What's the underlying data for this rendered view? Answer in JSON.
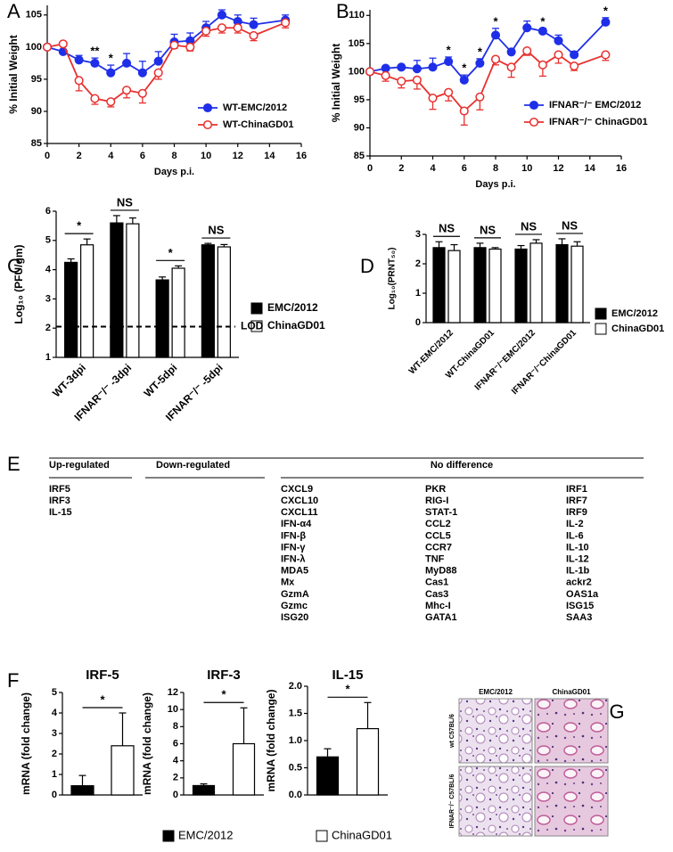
{
  "chart_data": [
    {
      "type": "line",
      "label": "A",
      "xlabel": "Days p.i.",
      "ylabel": "% Initial Weight",
      "xlim": [
        0,
        16
      ],
      "xticks": [
        0,
        2,
        4,
        6,
        8,
        10,
        12,
        14,
        16
      ],
      "ylim": [
        85,
        106.5
      ],
      "yticks": [
        85,
        90,
        95,
        100,
        105
      ],
      "x": [
        0,
        1,
        2,
        3,
        4,
        5,
        6,
        7,
        8,
        9,
        10,
        11,
        12,
        13,
        15
      ],
      "series": [
        {
          "name": "WT-EMC/2012",
          "color": "#1f2fe8",
          "marker": "filled",
          "error_direction": "up",
          "values": [
            100,
            99.3,
            98,
            97.5,
            96,
            97.5,
            96,
            97.8,
            100.8,
            101,
            103,
            105,
            104,
            103.5,
            104.2
          ],
          "errors": [
            0,
            0.3,
            0.7,
            0.8,
            1.2,
            1.5,
            1.8,
            1.5,
            1.2,
            1.2,
            1,
            0.8,
            1,
            1,
            0.8
          ]
        },
        {
          "name": "WT-ChinaGD01",
          "color": "#e8302e",
          "marker": "open",
          "error_direction": "down",
          "values": [
            100,
            100.5,
            94.8,
            92,
            91.5,
            93.3,
            92.8,
            96,
            100.3,
            100,
            102.5,
            103,
            103,
            101.8,
            103.8
          ],
          "errors": [
            0,
            0.3,
            1.6,
            0.9,
            0.8,
            1.2,
            1.5,
            1,
            0.5,
            0.6,
            0.8,
            0.8,
            0.8,
            0.8,
            0.8
          ]
        }
      ],
      "annotations": [
        {
          "x": 3,
          "text": "**"
        },
        {
          "x": 4,
          "text": "*"
        }
      ]
    },
    {
      "type": "line",
      "label": "B",
      "xlabel": "Days p.i.",
      "ylabel": "% Initial Weight",
      "xlim": [
        0,
        16
      ],
      "xticks": [
        0,
        2,
        4,
        6,
        8,
        10,
        12,
        14,
        16
      ],
      "ylim": [
        85,
        111
      ],
      "yticks": [
        85,
        90,
        95,
        100,
        105,
        110
      ],
      "x": [
        0,
        1,
        2,
        3,
        4,
        5,
        6,
        7,
        8,
        9,
        10,
        11,
        12,
        13,
        15
      ],
      "series": [
        {
          "name": "IFNAR⁻/⁻ EMC/2012",
          "color": "#1f2fe8",
          "marker": "filled",
          "error_direction": "up",
          "values": [
            100,
            100.6,
            100.8,
            100.5,
            100.8,
            101.8,
            98.5,
            101.5,
            106.5,
            103.5,
            107.8,
            107.2,
            105.5,
            103,
            108.8
          ],
          "errors": [
            0,
            0.3,
            0.3,
            1.5,
            1.6,
            0.8,
            0.9,
            0.8,
            1.2,
            0.5,
            1.2,
            0.5,
            1,
            0.6,
            0.8
          ]
        },
        {
          "name": "IFNAR⁻/⁻ ChinaGD01",
          "color": "#e8302e",
          "marker": "open",
          "error_direction": "down",
          "values": [
            100,
            99.3,
            98.3,
            98.5,
            95.3,
            96.3,
            93,
            95.5,
            102.2,
            100.8,
            103.7,
            101.2,
            103,
            101,
            103
          ],
          "errors": [
            0,
            1,
            1.2,
            1.6,
            2,
            1.5,
            2.5,
            2.3,
            1,
            1.8,
            0.8,
            2,
            1.5,
            0.8,
            1
          ]
        }
      ],
      "annotations": [
        {
          "x": 5,
          "text": "*"
        },
        {
          "x": 6,
          "text": "*"
        },
        {
          "x": 7,
          "text": "*"
        },
        {
          "x": 8,
          "text": "*"
        },
        {
          "x": 11,
          "text": "*"
        },
        {
          "x": 15,
          "text": "*"
        }
      ]
    },
    {
      "type": "bar",
      "label": "C",
      "ylabel": "Log₁₀ (PFU/gm)",
      "ylim": [
        1,
        6
      ],
      "yticks": [
        1,
        2,
        3,
        4,
        5,
        6
      ],
      "categories": [
        "WT-3dpi",
        "IFNAR⁻/⁻ -3dpi",
        "WT-5dpi",
        "IFNAR⁻/⁻ -5dpi"
      ],
      "series": [
        {
          "name": "EMC/2012",
          "color": "#000000",
          "values": [
            4.25,
            5.6,
            3.65,
            4.85
          ],
          "errors": [
            0.12,
            0.25,
            0.1,
            0.05
          ]
        },
        {
          "name": "ChinaGD01",
          "color": "#ffffff",
          "values": [
            4.85,
            5.57,
            4.05,
            4.78
          ],
          "errors": [
            0.2,
            0.2,
            0.08,
            0.08
          ]
        }
      ],
      "significance": [
        "*",
        "NS",
        "*",
        "NS"
      ],
      "reference_line": {
        "value": 2.05,
        "label": "LOD"
      }
    },
    {
      "type": "bar",
      "label": "D",
      "ylabel": "Log₁₀(PRNT₅₀)",
      "ylim": [
        0,
        3
      ],
      "yticks": [
        0,
        1,
        2,
        3
      ],
      "categories": [
        "WT-EMC/2012",
        "WT-ChinaGD01",
        "IFNAR⁻/⁻EMC/2012",
        "IFNAR⁻/⁻ChinaGD01"
      ],
      "series": [
        {
          "name": "EMC/2012",
          "color": "#000000",
          "values": [
            2.55,
            2.55,
            2.5,
            2.65
          ],
          "errors": [
            0.2,
            0.15,
            0.12,
            0.2
          ]
        },
        {
          "name": "ChinaGD01",
          "color": "#ffffff",
          "values": [
            2.45,
            2.5,
            2.7,
            2.6
          ],
          "errors": [
            0.2,
            0.05,
            0.12,
            0.15
          ]
        }
      ],
      "significance": [
        "NS",
        "NS",
        "NS",
        "NS"
      ]
    },
    {
      "type": "bar",
      "label": "F",
      "title": "IRF-5",
      "ylabel": "mRNA (fold change)",
      "ylim": [
        0,
        5
      ],
      "yticks": [
        0,
        1,
        2,
        3,
        4,
        5
      ],
      "values": [
        0.45,
        2.4
      ],
      "errors": [
        0.5,
        1.6
      ],
      "colors": [
        "#000000",
        "#ffffff"
      ],
      "significance": "*"
    },
    {
      "type": "bar",
      "title": "IRF-3",
      "ylabel": "mRNA (fold change)",
      "ylim": [
        0,
        12
      ],
      "yticks": [
        0,
        2,
        4,
        6,
        8,
        10,
        12
      ],
      "values": [
        1.1,
        6
      ],
      "errors": [
        0.2,
        4.2
      ],
      "colors": [
        "#000000",
        "#ffffff"
      ],
      "significance": "*"
    },
    {
      "type": "bar",
      "title": "IL-15",
      "ylabel": "mRNA (fold change)",
      "ylim": [
        0,
        2
      ],
      "yticks": [
        {
          "value": 0,
          "label": "0.0"
        },
        0.5,
        {
          "value": 1,
          "label": "1.0"
        },
        1.5,
        {
          "value": 2,
          "label": "2.0"
        }
      ],
      "values": [
        0.7,
        1.22
      ],
      "errors": [
        0.15,
        0.48
      ],
      "colors": [
        "#000000",
        "#ffffff"
      ],
      "significance": "*"
    }
  ],
  "legend_F": [
    {
      "name": "EMC/2012",
      "color": "#000000"
    },
    {
      "name": "ChinaGD01",
      "color": "#ffffff"
    }
  ],
  "table": {
    "label": "E",
    "headers": [
      "Up-regulated",
      "Down-regulated",
      "No difference"
    ],
    "up_regulated": [
      "IRF5",
      "IRF3",
      "IL-15"
    ],
    "down_regulated": [],
    "no_difference": [
      [
        "CXCL9",
        "CXCL10",
        "CXCL11",
        "IFN-α4",
        "IFN-β",
        "IFN-γ",
        "IFN-λ",
        "MDA5",
        "Mx",
        "GzmA",
        "Gzmc",
        "ISG20"
      ],
      [
        "PKR",
        "RIG-I",
        "STAT-1",
        "CCL2",
        "CCL5",
        "CCR7",
        "TNF",
        "MyD88",
        "Cas1",
        "Cas3",
        "Mhc-I",
        "GATA1"
      ],
      [
        "IRF1",
        "IRF7",
        "IRF9",
        "IL-2",
        "IL-6",
        "IL-10",
        "IL-12",
        "IL-1b",
        "ackr2",
        "OAS1a",
        "ISG15",
        "SAA3"
      ]
    ]
  },
  "histology": {
    "label": "G",
    "columns": [
      "EMC/2012",
      "ChinaGD01"
    ],
    "rows": [
      "wt C57BL/6",
      "IFNAR⁻/⁻ C57BL/6"
    ]
  }
}
